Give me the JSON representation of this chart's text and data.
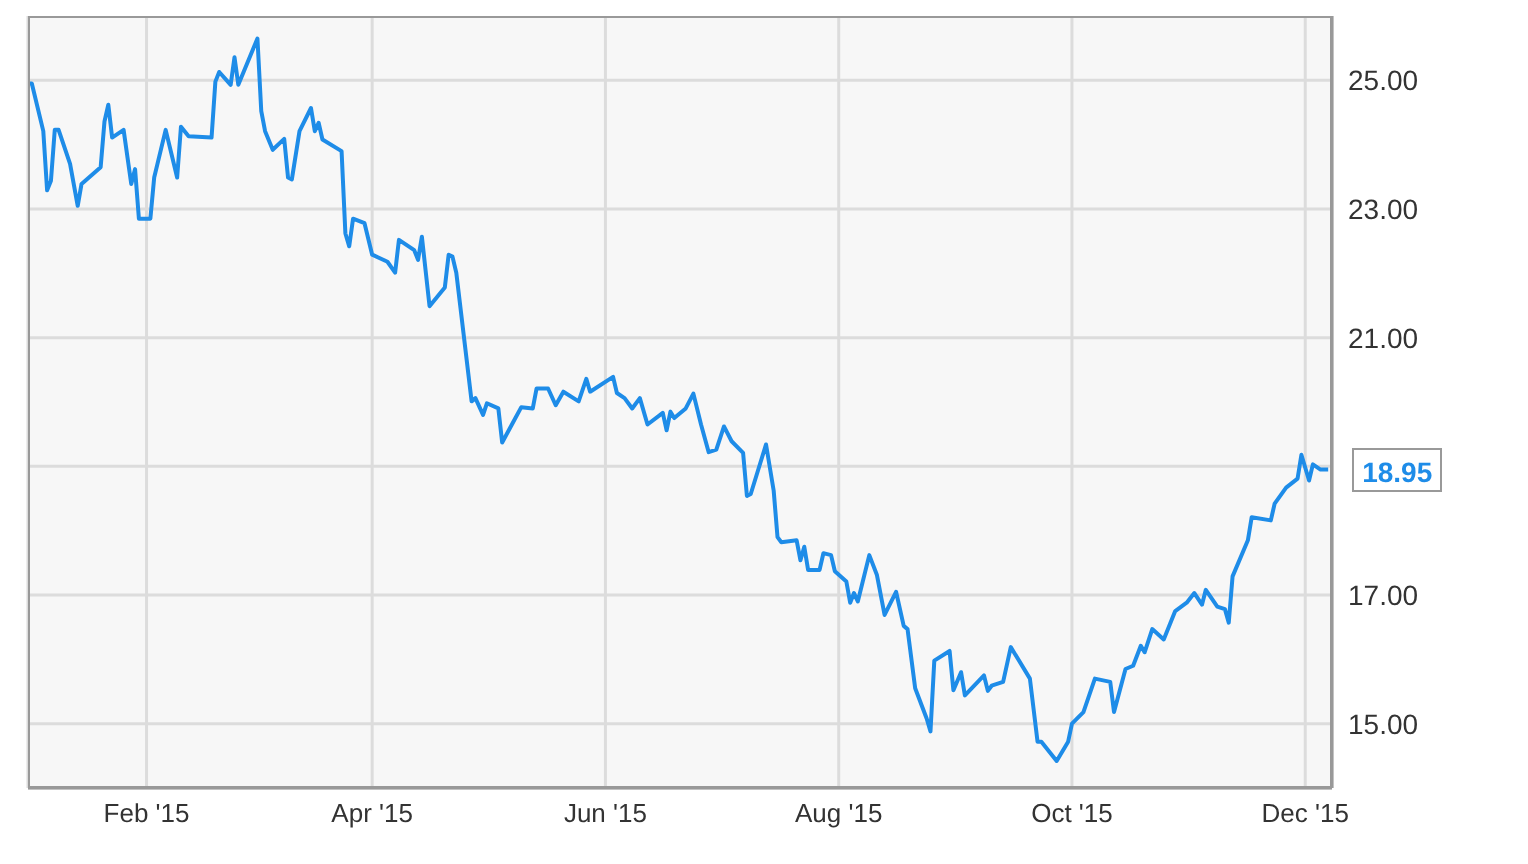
{
  "chart_data": {
    "type": "line",
    "x": [
      "2015-01-01",
      "2015-01-02",
      "2015-01-05",
      "2015-01-06",
      "2015-01-07",
      "2015-01-08",
      "2015-01-09",
      "2015-01-12",
      "2015-01-14",
      "2015-01-15",
      "2015-01-20",
      "2015-01-21",
      "2015-01-22",
      "2015-01-23",
      "2015-01-26",
      "2015-01-28",
      "2015-01-29",
      "2015-01-30",
      "2015-02-02",
      "2015-02-03",
      "2015-02-06",
      "2015-02-09",
      "2015-02-10",
      "2015-02-12",
      "2015-02-18",
      "2015-02-19",
      "2015-02-20",
      "2015-02-23",
      "2015-02-24",
      "2015-02-25",
      "2015-03-02",
      "2015-03-03",
      "2015-03-04",
      "2015-03-06",
      "2015-03-09",
      "2015-03-10",
      "2015-03-11",
      "2015-03-13",
      "2015-03-16",
      "2015-03-17",
      "2015-03-18",
      "2015-03-19",
      "2015-03-24",
      "2015-03-25",
      "2015-03-26",
      "2015-03-27",
      "2015-03-30",
      "2015-04-01",
      "2015-04-05",
      "2015-04-07",
      "2015-04-08",
      "2015-04-12",
      "2015-04-13",
      "2015-04-14",
      "2015-04-16",
      "2015-04-20",
      "2015-04-21",
      "2015-04-22",
      "2015-04-23",
      "2015-04-27",
      "2015-04-28",
      "2015-04-30",
      "2015-05-01",
      "2015-05-04",
      "2015-05-05",
      "2015-05-08",
      "2015-05-10",
      "2015-05-13",
      "2015-05-14",
      "2015-05-17",
      "2015-05-19",
      "2015-05-21",
      "2015-05-25",
      "2015-05-27",
      "2015-05-28",
      "2015-06-03",
      "2015-06-04",
      "2015-06-06",
      "2015-06-08",
      "2015-06-10",
      "2015-06-12",
      "2015-06-16",
      "2015-06-17",
      "2015-06-18",
      "2015-06-19",
      "2015-06-22",
      "2015-06-24",
      "2015-06-26",
      "2015-06-28",
      "2015-06-30",
      "2015-07-02",
      "2015-07-04",
      "2015-07-07",
      "2015-07-08",
      "2015-07-09",
      "2015-07-13",
      "2015-07-15",
      "2015-07-16",
      "2015-07-17",
      "2015-07-21",
      "2015-07-22",
      "2015-07-23",
      "2015-07-24",
      "2015-07-27",
      "2015-07-28",
      "2015-07-30",
      "2015-07-31",
      "2015-08-03",
      "2015-08-04",
      "2015-08-05",
      "2015-08-06",
      "2015-08-09",
      "2015-08-11",
      "2015-08-13",
      "2015-08-16",
      "2015-08-18",
      "2015-08-19",
      "2015-08-21",
      "2015-08-24",
      "2015-08-25",
      "2015-08-26",
      "2015-08-30",
      "2015-08-31",
      "2015-09-02",
      "2015-09-03",
      "2015-09-08",
      "2015-09-09",
      "2015-09-10",
      "2015-09-13",
      "2015-09-15",
      "2015-09-20",
      "2015-09-22",
      "2015-09-23",
      "2015-09-27",
      "2015-09-30",
      "2015-10-01",
      "2015-10-04",
      "2015-10-07",
      "2015-10-11",
      "2015-10-12",
      "2015-10-15",
      "2015-10-17",
      "2015-10-19",
      "2015-10-20",
      "2015-10-22",
      "2015-10-25",
      "2015-10-28",
      "2015-10-31",
      "2015-11-02",
      "2015-11-04",
      "2015-11-05",
      "2015-11-08",
      "2015-11-10",
      "2015-11-11",
      "2015-11-12",
      "2015-11-16",
      "2015-11-17",
      "2015-11-22",
      "2015-11-23",
      "2015-11-26",
      "2015-11-29",
      "2015-11-30",
      "2015-12-02",
      "2015-12-03",
      "2015-12-05",
      "2015-12-07"
    ],
    "series": [
      {
        "color": "#1e8ce8",
        "values": [
          24.95,
          24.95,
          24.21,
          23.29,
          23.44,
          24.23,
          24.23,
          23.7,
          23.05,
          23.39,
          23.65,
          24.36,
          24.62,
          24.11,
          24.23,
          23.39,
          23.62,
          22.85,
          22.85,
          23.49,
          24.23,
          23.49,
          24.28,
          24.13,
          24.11,
          24.98,
          25.13,
          24.93,
          25.36,
          24.93,
          25.65,
          24.52,
          24.21,
          23.92,
          24.09,
          23.49,
          23.46,
          24.21,
          24.57,
          24.21,
          24.34,
          24.08,
          23.9,
          22.62,
          22.42,
          22.85,
          22.78,
          22.29,
          22.18,
          22.01,
          22.52,
          22.36,
          22.21,
          22.57,
          21.49,
          21.78,
          22.29,
          22.26,
          22.01,
          20.01,
          20.06,
          19.8,
          19.98,
          19.9,
          19.37,
          19.7,
          19.92,
          19.9,
          20.21,
          20.21,
          19.95,
          20.16,
          20.01,
          20.36,
          20.16,
          20.39,
          20.14,
          20.06,
          19.9,
          20.06,
          19.65,
          19.83,
          19.56,
          19.85,
          19.75,
          19.9,
          20.13,
          19.65,
          19.22,
          19.26,
          19.62,
          19.39,
          19.21,
          18.54,
          18.57,
          19.34,
          18.62,
          17.9,
          17.82,
          17.85,
          17.54,
          17.75,
          17.39,
          17.39,
          17.65,
          17.62,
          17.37,
          17.21,
          16.88,
          17.03,
          16.9,
          17.62,
          17.31,
          16.69,
          17.05,
          16.52,
          16.47,
          15.55,
          15.08,
          14.88,
          15.98,
          16.13,
          15.52,
          15.8,
          15.44,
          15.75,
          15.51,
          15.59,
          15.65,
          16.19,
          15.7,
          14.72,
          14.72,
          14.42,
          14.72,
          15.0,
          15.18,
          15.7,
          15.65,
          15.18,
          15.85,
          15.9,
          16.21,
          16.11,
          16.47,
          16.31,
          16.75,
          16.88,
          17.03,
          16.85,
          17.08,
          16.82,
          16.78,
          16.57,
          17.29,
          17.85,
          18.21,
          18.16,
          18.42,
          18.67,
          18.81,
          19.18,
          18.78,
          19.03,
          18.95,
          18.95
        ]
      }
    ],
    "xlim": [
      "2015-01-01",
      "2015-12-08"
    ],
    "xticks": [
      {
        "value": "2015-02-01",
        "label": "Feb '15"
      },
      {
        "value": "2015-04-01",
        "label": "Apr '15"
      },
      {
        "value": "2015-06-01",
        "label": "Jun '15"
      },
      {
        "value": "2015-08-01",
        "label": "Aug '15"
      },
      {
        "value": "2015-10-01",
        "label": "Oct '15"
      },
      {
        "value": "2015-12-01",
        "label": "Dec '15"
      }
    ],
    "ylim": [
      14,
      26
    ],
    "yticks": [
      {
        "value": 15,
        "label": "15.00"
      },
      {
        "value": 17,
        "label": "17.00"
      },
      {
        "value": 19,
        "label": null
      },
      {
        "value": 21,
        "label": "21.00"
      },
      {
        "value": 23,
        "label": "23.00"
      },
      {
        "value": 25,
        "label": "25.00"
      }
    ],
    "annotations": [
      {
        "text": "18.95",
        "x": "2015-12-07",
        "y": 18.95
      }
    ],
    "grid": true,
    "marker": "none",
    "line_style": "solid"
  }
}
